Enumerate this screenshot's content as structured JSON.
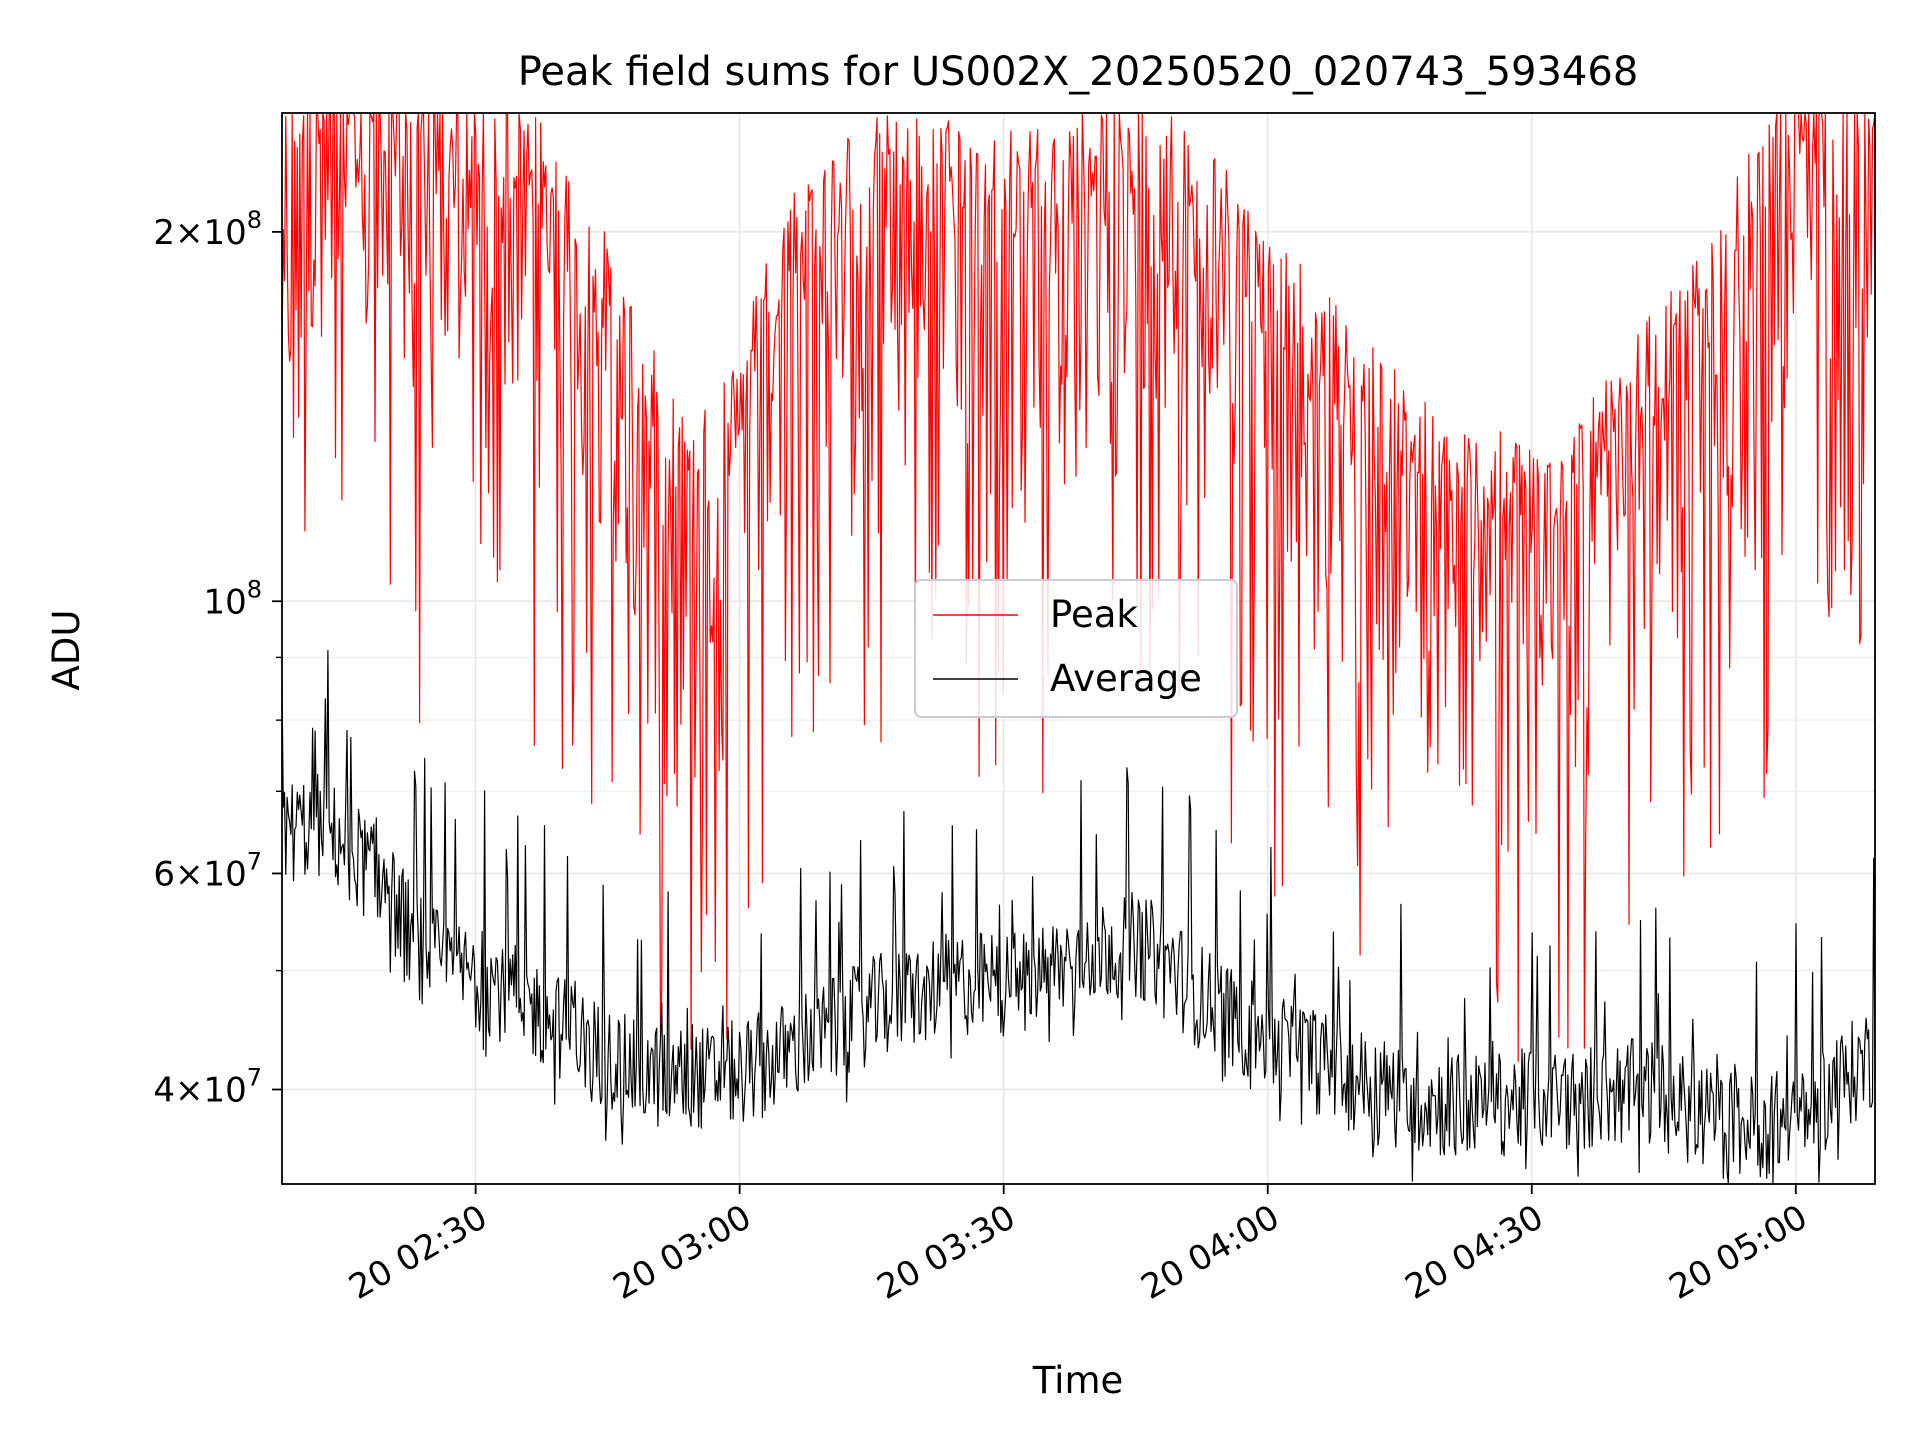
{
  "chart_data": {
    "type": "line",
    "title": "Peak field sums for US002X_20250520_020743_593468",
    "xlabel": "Time",
    "ylabel": "ADU",
    "y_scale": "log",
    "ylim": [
      33500000,
      250000000
    ],
    "xlim": [
      "20 02:08",
      "20 05:09"
    ],
    "x_ticks": [
      {
        "value": "20 02:30",
        "label": "20 02:30"
      },
      {
        "value": "20 03:00",
        "label": "20 03:00"
      },
      {
        "value": "20 03:30",
        "label": "20 03:30"
      },
      {
        "value": "20 04:00",
        "label": "20 04:00"
      },
      {
        "value": "20 04:30",
        "label": "20 04:30"
      },
      {
        "value": "20 05:00",
        "label": "20 05:00"
      }
    ],
    "y_ticks": [
      {
        "value": 40000000,
        "base": "4",
        "exp": "7"
      },
      {
        "value": 60000000,
        "base": "6",
        "exp": "7"
      },
      {
        "value": 100000000,
        "base": "",
        "exp": "8"
      },
      {
        "value": 200000000,
        "base": "2",
        "exp": "8"
      }
    ],
    "y_minor_ticks": [
      50000000,
      70000000,
      80000000,
      90000000
    ],
    "grid": true,
    "legend_position": "center",
    "series": [
      {
        "name": "Peak",
        "color": "#ff0000",
        "points": [
          [
            "20 02:08",
            200000000
          ],
          [
            "20 02:12",
            235000000
          ],
          [
            "20 02:16",
            230000000
          ],
          [
            "20 02:20",
            225000000
          ],
          [
            "20 02:24",
            220000000
          ],
          [
            "20 02:28",
            215000000
          ],
          [
            "20 02:32",
            212000000
          ],
          [
            "20 02:36",
            205000000
          ],
          [
            "20 02:40",
            185000000
          ],
          [
            "20 02:44",
            165000000
          ],
          [
            "20 02:48",
            140000000
          ],
          [
            "20 02:52",
            120000000
          ],
          [
            "20 02:56",
            115000000
          ],
          [
            "20 03:00",
            130000000
          ],
          [
            "20 03:04",
            165000000
          ],
          [
            "20 03:08",
            185000000
          ],
          [
            "20 03:12",
            195000000
          ],
          [
            "20 03:16",
            200000000
          ],
          [
            "20 03:20",
            200000000
          ],
          [
            "20 03:24",
            200000000
          ],
          [
            "20 03:28",
            195000000
          ],
          [
            "20 03:32",
            195000000
          ],
          [
            "20 03:36",
            200000000
          ],
          [
            "20 03:40",
            205000000
          ],
          [
            "20 03:44",
            210000000
          ],
          [
            "20 03:48",
            205000000
          ],
          [
            "20 03:52",
            195000000
          ],
          [
            "20 03:56",
            180000000
          ],
          [
            "20 04:00",
            160000000
          ],
          [
            "20 04:04",
            150000000
          ],
          [
            "20 04:08",
            140000000
          ],
          [
            "20 04:12",
            130000000
          ],
          [
            "20 04:16",
            120000000
          ],
          [
            "20 04:20",
            115000000
          ],
          [
            "20 04:24",
            110000000
          ],
          [
            "20 04:28",
            110000000
          ],
          [
            "20 04:32",
            112000000
          ],
          [
            "20 04:36",
            115000000
          ],
          [
            "20 04:40",
            125000000
          ],
          [
            "20 04:44",
            140000000
          ],
          [
            "20 04:48",
            150000000
          ],
          [
            "20 04:52",
            170000000
          ],
          [
            "20 04:56",
            195000000
          ],
          [
            "20 05:00",
            215000000
          ],
          [
            "20 05:04",
            225000000
          ],
          [
            "20 05:09",
            230000000
          ]
        ]
      },
      {
        "name": "Average",
        "color": "#000000",
        "points": [
          [
            "20 02:08",
            65000000
          ],
          [
            "20 02:12",
            66000000
          ],
          [
            "20 02:16",
            63000000
          ],
          [
            "20 02:20",
            58000000
          ],
          [
            "20 02:24",
            52000000
          ],
          [
            "20 02:28",
            50000000
          ],
          [
            "20 02:32",
            49000000
          ],
          [
            "20 02:36",
            47000000
          ],
          [
            "20 02:40",
            45000000
          ],
          [
            "20 02:44",
            43000000
          ],
          [
            "20 02:48",
            41500000
          ],
          [
            "20 02:52",
            41000000
          ],
          [
            "20 02:56",
            41000000
          ],
          [
            "20 03:00",
            41500000
          ],
          [
            "20 03:04",
            42500000
          ],
          [
            "20 03:08",
            44000000
          ],
          [
            "20 03:12",
            45500000
          ],
          [
            "20 03:16",
            47000000
          ],
          [
            "20 03:20",
            48000000
          ],
          [
            "20 03:24",
            49000000
          ],
          [
            "20 03:28",
            49000000
          ],
          [
            "20 03:32",
            49000000
          ],
          [
            "20 03:36",
            50500000
          ],
          [
            "20 03:40",
            52000000
          ],
          [
            "20 03:44",
            53000000
          ],
          [
            "20 03:48",
            51500000
          ],
          [
            "20 03:52",
            48000000
          ],
          [
            "20 03:56",
            46000000
          ],
          [
            "20 04:00",
            44000000
          ],
          [
            "20 04:04",
            43000000
          ],
          [
            "20 04:08",
            41500000
          ],
          [
            "20 04:12",
            40500000
          ],
          [
            "20 04:16",
            39500000
          ],
          [
            "20 04:20",
            39000000
          ],
          [
            "20 04:24",
            39000000
          ],
          [
            "20 04:28",
            39200000
          ],
          [
            "20 04:32",
            39500000
          ],
          [
            "20 04:36",
            39500000
          ],
          [
            "20 04:40",
            40000000
          ],
          [
            "20 04:44",
            40000000
          ],
          [
            "20 04:48",
            38500000
          ],
          [
            "20 04:52",
            37500000
          ],
          [
            "20 04:56",
            37500000
          ],
          [
            "20 05:00",
            38000000
          ],
          [
            "20 05:04",
            40000000
          ],
          [
            "20 05:09",
            43000000
          ]
        ]
      }
    ]
  }
}
